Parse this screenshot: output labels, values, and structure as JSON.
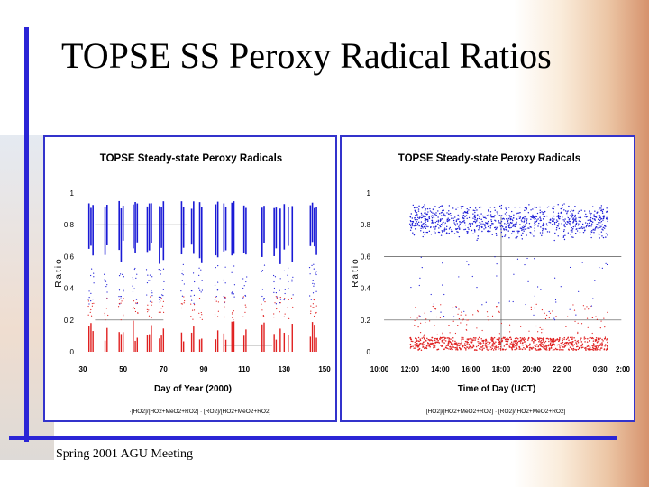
{
  "slide": {
    "title": "TOPSE SS Peroxy Radical Ratios",
    "footer": "Spring 2001 AGU Meeting"
  },
  "colors": {
    "accent_bar": "#2b25d6",
    "series_1": "#1a1ad6",
    "series_2": "#e02020"
  },
  "chart_data": [
    {
      "type": "scatter",
      "title": "TOPSE Steady-state Peroxy Radicals",
      "xlabel": "Day of Year (2000)",
      "ylabel": "Ratio",
      "xlim": [
        30,
        150
      ],
      "ylim": [
        0,
        1
      ],
      "xticks": [
        "30",
        "50",
        "70",
        "90",
        "110",
        "130",
        "150"
      ],
      "yticks": [
        "0",
        "0.2",
        "0.4",
        "0.6",
        "0.8",
        "1"
      ],
      "grid": false,
      "legend_position": "bottom",
      "legend_text": "·[HO2]/[HO2+MeO2+RO2] · [RO2]/[HO2+MeO2+RO2]",
      "sampled_days": [
        33,
        34,
        35,
        41,
        42,
        48,
        49,
        50,
        55,
        56,
        57,
        62,
        63,
        64,
        68,
        69,
        70,
        79,
        80,
        84,
        85,
        88,
        89,
        96,
        97,
        100,
        101,
        104,
        105,
        110,
        111,
        119,
        120,
        125,
        126,
        128,
        130,
        132,
        134,
        143,
        144,
        145,
        146
      ],
      "series": [
        {
          "y_range": [
            0.55,
            0.95
          ],
          "typical": 0.8
        },
        {
          "y_range": [
            0.0,
            0.2
          ],
          "typical": 0.1
        }
      ]
    },
    {
      "type": "scatter",
      "title": "TOPSE Steady-state Peroxy Radicals",
      "xlabel": "Time of Day (UCT)",
      "ylabel": "Ratio",
      "xlim": [
        "10:00",
        "02:00"
      ],
      "ylim": [
        0,
        1
      ],
      "xticks": [
        "10:00",
        "12:00",
        "14:00",
        "16:00",
        "18:00",
        "20:00",
        "22:00",
        "0:30",
        "2:00"
      ],
      "yticks": [
        "0",
        "0.2",
        "0.4",
        "0.6",
        "0.8",
        "1"
      ],
      "grid": false,
      "legend_position": "bottom",
      "legend_text": "·[HO2]/[HO2+MeO2+RO2] · [RO2]/[HO2+MeO2+RO2]",
      "x_span_hours": [
        12,
        25
      ],
      "series": [
        {
          "y_range": [
            0.6,
            0.95
          ],
          "typical": 0.82
        },
        {
          "y_range": [
            0.0,
            0.15
          ],
          "typical": 0.05
        }
      ]
    }
  ]
}
